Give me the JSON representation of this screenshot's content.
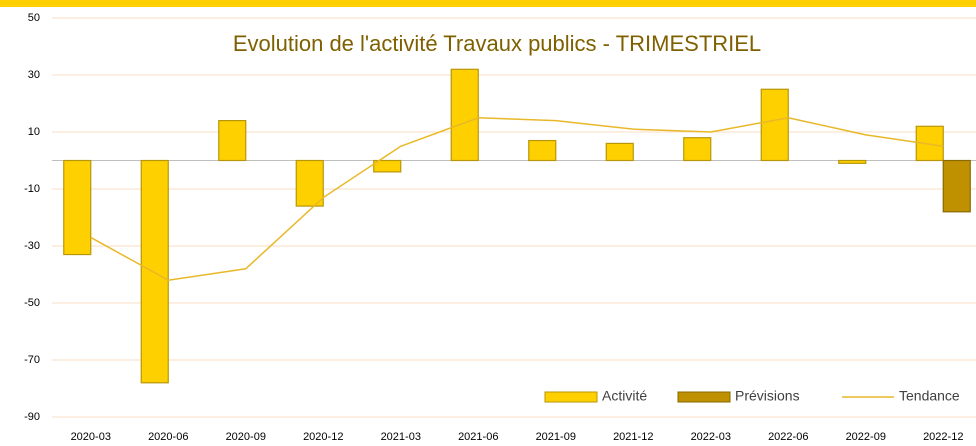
{
  "chart_data": {
    "type": "bar-line",
    "title": "Evolution de l'activité Travaux publics - TRIMESTRIEL",
    "categories": [
      "2020-03",
      "2020-06",
      "2020-09",
      "2020-12",
      "2021-03",
      "2021-06",
      "2021-09",
      "2021-12",
      "2022-03",
      "2022-06",
      "2022-09",
      "2022-12"
    ],
    "series": [
      {
        "name": "Activité",
        "type": "bar",
        "color": "#FFD000",
        "values": [
          -33,
          -78,
          14,
          -16,
          -4,
          32,
          7,
          6,
          8,
          25,
          -1,
          12
        ]
      },
      {
        "name": "Prévisions",
        "type": "bar",
        "color": "#BF9000",
        "values": [
          null,
          null,
          null,
          null,
          null,
          null,
          null,
          null,
          null,
          null,
          null,
          -18
        ]
      },
      {
        "name": "Tendance",
        "type": "line",
        "color": "#E8B828",
        "values": [
          -27,
          -42,
          -38,
          -13,
          5,
          15,
          14,
          11,
          10,
          15,
          9,
          5
        ]
      }
    ],
    "ylim": [
      -90,
      50
    ],
    "yticks": [
      -90,
      -70,
      -50,
      -30,
      -10,
      10,
      30,
      50
    ],
    "grid": true,
    "legend": "bottom-right"
  }
}
